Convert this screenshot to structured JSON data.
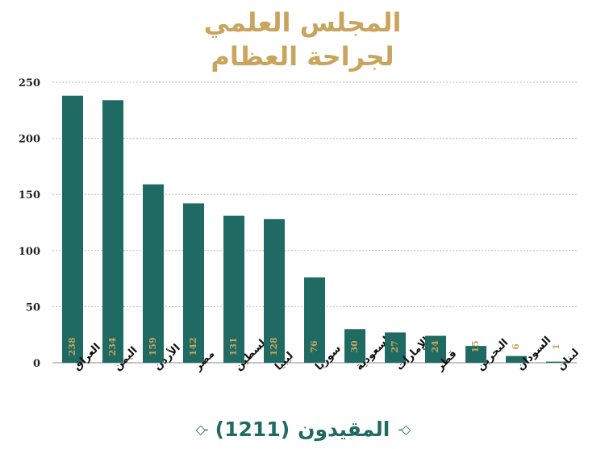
{
  "title": {
    "line1": "المجلس العلمي",
    "line2": "لجراحة العظام"
  },
  "footer": {
    "label": "المقيدون",
    "count": "(1211)"
  },
  "colors": {
    "bar": "#1f6b63",
    "title": "#c9a45c",
    "label": "#c9a45c",
    "grid": "#b8b8b8"
  },
  "chart_data": {
    "type": "bar",
    "categories": [
      "العراق",
      "اليمن",
      "الأردن",
      "مصر",
      "فلسطين",
      "ليبيا",
      "سوريا",
      "السعودية",
      "الإمارات",
      "قطر",
      "البحرين",
      "السودان",
      "لبنان"
    ],
    "values": [
      238,
      234,
      159,
      142,
      131,
      128,
      76,
      30,
      27,
      24,
      15,
      6,
      1
    ],
    "ylim": [
      0,
      250
    ],
    "yticks": [
      0,
      50,
      100,
      150,
      200,
      250
    ],
    "grid": true
  }
}
